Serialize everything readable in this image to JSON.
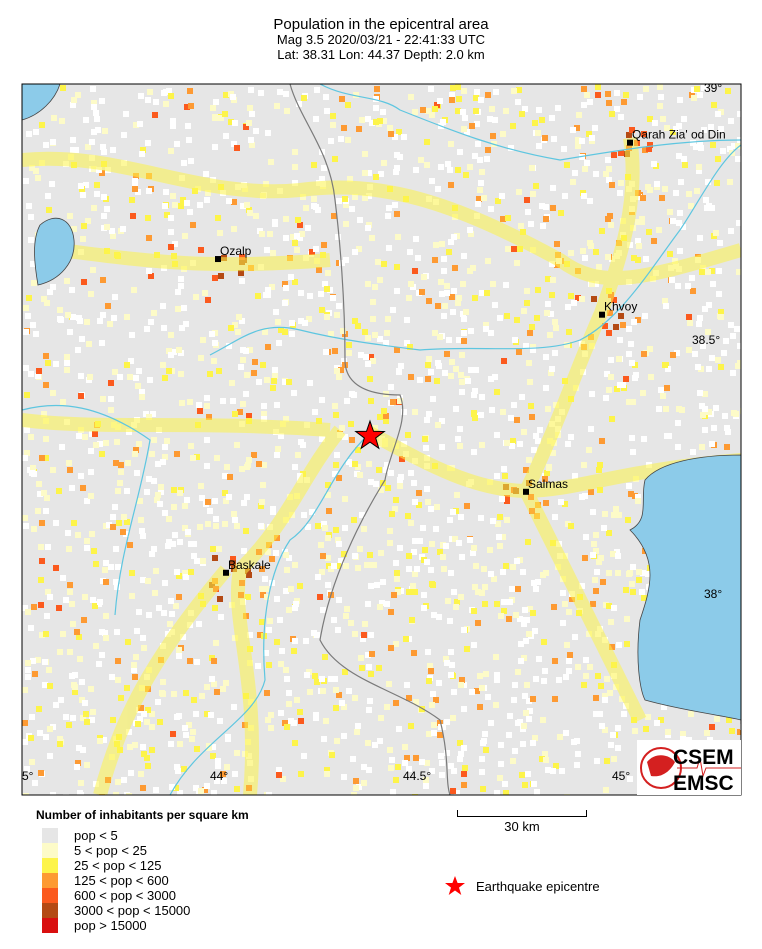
{
  "title": {
    "line1": "Population in the epicentral area",
    "line2": "Mag 3.5  2020/03/21 - 22:41:33 UTC",
    "line3": "Lat: 38.31    Lon:  44.37     Depth:  2.0 km"
  },
  "event": {
    "magnitude": 3.5,
    "date": "2020/03/21",
    "time": "22:41:33 UTC",
    "lat": 38.31,
    "lon": 44.37,
    "depth_km": 2.0
  },
  "axes": {
    "lon_ticks": [
      "5°",
      "44°",
      "44.5°",
      "45°"
    ],
    "lat_ticks": [
      "39°",
      "38.5°",
      "38°"
    ]
  },
  "cities": [
    {
      "name": "Qarah Zia' od Din",
      "lat": 38.89,
      "lon": 45.02
    },
    {
      "name": "Ozalp",
      "lat": 38.66,
      "lon": 43.99
    },
    {
      "name": "Khvoy",
      "lat": 38.55,
      "lon": 44.95
    },
    {
      "name": "Salmas",
      "lat": 38.2,
      "lon": 44.76
    },
    {
      "name": "Baskale",
      "lat": 38.04,
      "lon": 44.01
    }
  ],
  "legend": {
    "title": "Number of inhabitants per square km",
    "items": [
      {
        "label": "pop < 5",
        "color": "#e6e6e6"
      },
      {
        "label": "5 < pop < 25",
        "color": "#fdfbc8"
      },
      {
        "label": "25 < pop < 125",
        "color": "#fdf44a"
      },
      {
        "label": "125 < pop < 600",
        "color": "#fd9a33"
      },
      {
        "label": "600 < pop < 3000",
        "color": "#fb5a1e"
      },
      {
        "label": "3000 < pop < 15000",
        "color": "#b44a14"
      },
      {
        "label": "pop > 15000",
        "color": "#d90f0f"
      }
    ]
  },
  "scale_bar": "30 km",
  "epicentre_label": "Earthquake epicentre",
  "logo": {
    "top": "CSEM",
    "bottom": "EMSC"
  },
  "colors": {
    "water": "#8ccbe9",
    "epicentre": "#ff0000",
    "border": "#7a7a7a",
    "river": "#5ec6e0"
  }
}
